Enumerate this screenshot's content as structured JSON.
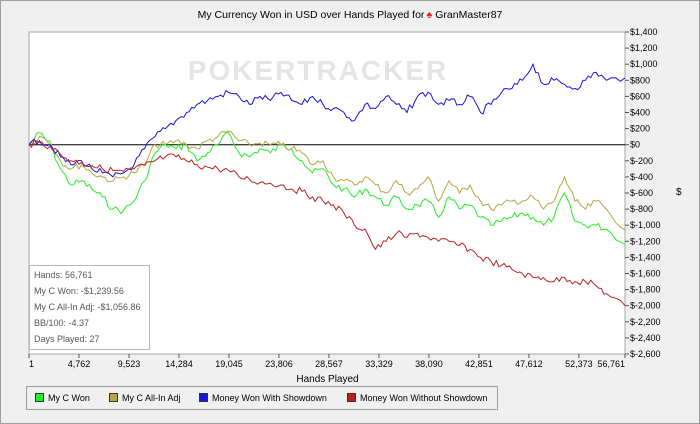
{
  "title_text": "My Currency Won in USD over Hands Played for",
  "title_player": "GranMaster87",
  "watermark": "POKERTRACKER",
  "stats": {
    "hands": "Hands: 56,761",
    "c_won": "My C Won: -$1,239.56",
    "allin_adj": "My C All-In Adj: -$1,056.86",
    "bb100": "BB/100: -4.37",
    "days": "Days Played: 27"
  },
  "chart_data": {
    "type": "line",
    "xlabel": "Hands Played",
    "ylabel": "$",
    "xlim": [
      1,
      56761
    ],
    "ylim": [
      -2600,
      1400
    ],
    "x_ticks": [
      1,
      4762,
      9523,
      14284,
      19045,
      23806,
      28567,
      33329,
      38090,
      42851,
      47612,
      52373,
      56761
    ],
    "x_tick_labels": [
      "1",
      "4,762",
      "9,523",
      "14,284",
      "19,045",
      "23,806",
      "28,567",
      "33,329",
      "38,090",
      "42,851",
      "47,612",
      "52,373",
      "56,761"
    ],
    "y_ticks": [
      1400,
      1200,
      1000,
      800,
      600,
      400,
      200,
      0,
      -200,
      -400,
      -600,
      -800,
      -1000,
      -1200,
      -1400,
      -1600,
      -1800,
      -2000,
      -2200,
      -2400,
      -2600
    ],
    "y_tick_labels": [
      "$1,400",
      "$1,200",
      "$1,000",
      "$800",
      "$600",
      "$400",
      "$200",
      "$0",
      "$-200",
      "$-400",
      "$-600",
      "$-800",
      "$-1,000",
      "$-1,200",
      "$-1,400",
      "$-1,600",
      "$-1,800",
      "$-2,000",
      "$-2,200",
      "$-2,400",
      "$-2,600"
    ],
    "grid": false,
    "legend_position": "bottom",
    "series": [
      {
        "name": "My C Won",
        "color": "#22ee22",
        "x": [
          1,
          1000,
          2000,
          3000,
          4000,
          5000,
          6000,
          7000,
          8000,
          9000,
          10000,
          11000,
          12000,
          13000,
          14000,
          15000,
          16000,
          17000,
          18000,
          19000,
          20000,
          21000,
          22000,
          23000,
          24000,
          25000,
          26000,
          27000,
          28000,
          29000,
          30000,
          31000,
          32000,
          33000,
          34000,
          35000,
          36000,
          37000,
          38000,
          39000,
          40000,
          41000,
          42000,
          43000,
          44000,
          45000,
          46000,
          47000,
          48000,
          49000,
          50000,
          51000,
          52000,
          53000,
          54000,
          55000,
          56761
        ],
        "y": [
          0,
          150,
          0,
          -300,
          -500,
          -450,
          -550,
          -650,
          -800,
          -820,
          -700,
          -450,
          -100,
          0,
          -50,
          0,
          -200,
          -100,
          0,
          150,
          -100,
          -150,
          -50,
          -100,
          0,
          -50,
          -200,
          -350,
          -300,
          -500,
          -550,
          -650,
          -550,
          -650,
          -750,
          -650,
          -800,
          -750,
          -700,
          -900,
          -650,
          -800,
          -750,
          -900,
          -1000,
          -950,
          -900,
          -850,
          -900,
          -1000,
          -900,
          -600,
          -950,
          -1000,
          -1000,
          -1050,
          -1240
        ]
      },
      {
        "name": "My C All-In Adj",
        "color": "#b5a642",
        "x": [
          1,
          1000,
          2000,
          3000,
          4000,
          5000,
          6000,
          7000,
          8000,
          9000,
          10000,
          11000,
          12000,
          13000,
          14000,
          15000,
          16000,
          17000,
          18000,
          19000,
          20000,
          21000,
          22000,
          23000,
          24000,
          25000,
          26000,
          27000,
          28000,
          29000,
          30000,
          31000,
          32000,
          33000,
          34000,
          35000,
          36000,
          37000,
          38000,
          39000,
          40000,
          41000,
          42000,
          43000,
          44000,
          45000,
          46000,
          47000,
          48000,
          49000,
          50000,
          51000,
          52000,
          53000,
          54000,
          55000,
          56761
        ],
        "y": [
          0,
          100,
          50,
          -200,
          -300,
          -250,
          -350,
          -400,
          -450,
          -400,
          -350,
          -250,
          0,
          0,
          50,
          0,
          -50,
          50,
          100,
          170,
          50,
          0,
          20,
          0,
          0,
          -50,
          -100,
          -250,
          -200,
          -400,
          -450,
          -500,
          -400,
          -500,
          -600,
          -450,
          -600,
          -550,
          -400,
          -700,
          -450,
          -600,
          -500,
          -700,
          -800,
          -750,
          -700,
          -700,
          -650,
          -800,
          -700,
          -400,
          -700,
          -800,
          -700,
          -800,
          -1057
        ]
      },
      {
        "name": "Money Won With Showdown",
        "color": "#1515dd",
        "x": [
          1,
          1000,
          2000,
          3000,
          4000,
          5000,
          6000,
          7000,
          8000,
          9000,
          10000,
          11000,
          12000,
          13000,
          14000,
          15000,
          16000,
          17000,
          18000,
          19000,
          20000,
          21000,
          22000,
          23000,
          24000,
          25000,
          26000,
          27000,
          28000,
          29000,
          30000,
          31000,
          32000,
          33000,
          34000,
          35000,
          36000,
          37000,
          38000,
          39000,
          40000,
          41000,
          42000,
          43000,
          44000,
          45000,
          46000,
          47000,
          48000,
          49000,
          50000,
          51000,
          52000,
          53000,
          54000,
          55000,
          56761
        ],
        "y": [
          0,
          50,
          0,
          -150,
          -250,
          -200,
          -300,
          -350,
          -400,
          -350,
          -250,
          -50,
          100,
          200,
          300,
          400,
          500,
          550,
          600,
          650,
          600,
          500,
          600,
          550,
          650,
          550,
          500,
          600,
          500,
          450,
          400,
          300,
          500,
          450,
          600,
          500,
          400,
          600,
          650,
          500,
          550,
          500,
          600,
          400,
          500,
          650,
          700,
          800,
          1000,
          750,
          800,
          750,
          700,
          800,
          900,
          800,
          830
        ]
      },
      {
        "name": "Money Won Without Showdown",
        "color": "#bb2222",
        "x": [
          1,
          1000,
          2000,
          3000,
          4000,
          5000,
          6000,
          7000,
          8000,
          9000,
          10000,
          11000,
          12000,
          13000,
          14000,
          15000,
          16000,
          17000,
          18000,
          19000,
          20000,
          21000,
          22000,
          23000,
          24000,
          25000,
          26000,
          27000,
          28000,
          29000,
          30000,
          31000,
          32000,
          33000,
          34000,
          35000,
          36000,
          37000,
          38000,
          39000,
          40000,
          41000,
          42000,
          43000,
          44000,
          45000,
          46000,
          47000,
          48000,
          49000,
          50000,
          51000,
          52000,
          53000,
          54000,
          55000,
          56761
        ],
        "y": [
          0,
          30,
          -20,
          -120,
          -200,
          -220,
          -260,
          -300,
          -320,
          -330,
          -300,
          -260,
          -200,
          -150,
          -150,
          -200,
          -250,
          -280,
          -300,
          -320,
          -400,
          -430,
          -470,
          -480,
          -500,
          -550,
          -580,
          -650,
          -700,
          -750,
          -850,
          -1000,
          -1050,
          -1300,
          -1200,
          -1100,
          -1150,
          -1100,
          -1150,
          -1200,
          -1200,
          -1250,
          -1300,
          -1400,
          -1450,
          -1500,
          -1550,
          -1600,
          -1650,
          -1650,
          -1700,
          -1650,
          -1700,
          -1700,
          -1750,
          -1850,
          -2000
        ]
      }
    ]
  },
  "legend": [
    "My C Won",
    "My C All-In Adj",
    "Money Won With Showdown",
    "Money Won Without Showdown"
  ]
}
